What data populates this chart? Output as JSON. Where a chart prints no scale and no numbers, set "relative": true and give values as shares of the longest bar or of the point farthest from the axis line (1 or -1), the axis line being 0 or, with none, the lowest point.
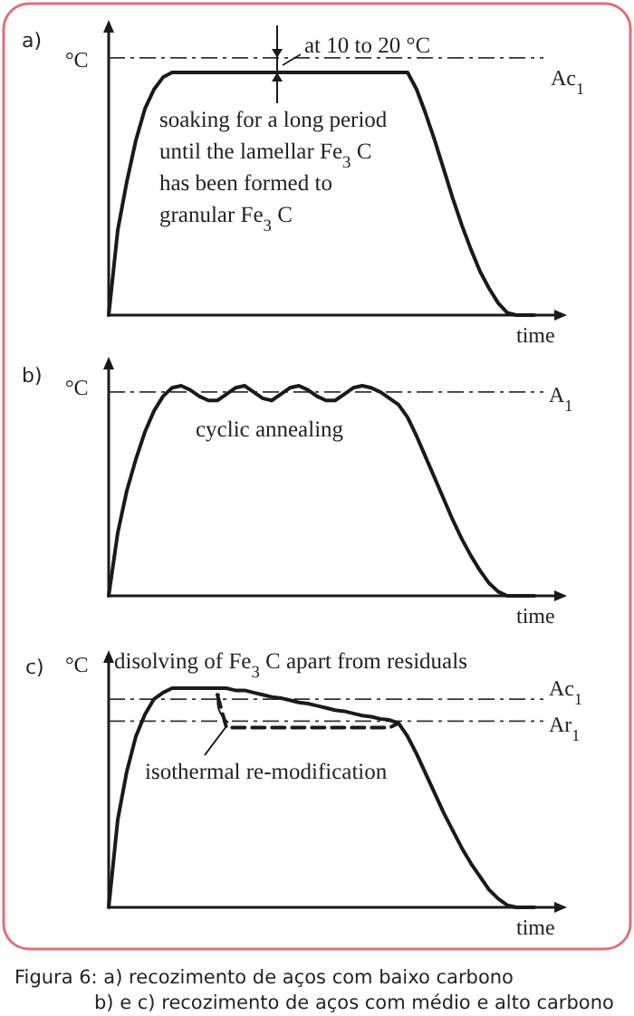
{
  "chart_data": [
    {
      "type": "line",
      "title": "a)",
      "ylabel": "°C",
      "xlabel": "time",
      "relative": true,
      "marker": "none",
      "categories": [
        null,
        null,
        null,
        null,
        null,
        null,
        null,
        null,
        null,
        null,
        null,
        null,
        null,
        null,
        null,
        null,
        null,
        null,
        null,
        null,
        null,
        null,
        null,
        null,
        null,
        null,
        null,
        null,
        null,
        null,
        null,
        null,
        null,
        null,
        null,
        null,
        null,
        null,
        null,
        null,
        null,
        null,
        null,
        null,
        null,
        null,
        null,
        null
      ],
      "series": [
        {
          "color": "#1a1a1a",
          "line_style": "solid",
          "values": [
            0,
            0.35,
            0.55,
            0.72,
            0.85,
            0.93,
            0.98,
            1,
            1,
            1,
            1,
            1,
            1,
            1,
            1,
            1,
            1,
            1,
            1,
            1,
            1,
            1,
            1,
            1,
            1,
            1,
            1,
            1,
            1,
            1,
            1,
            1,
            1,
            1,
            0.93,
            0.83,
            0.72,
            0.6,
            0.48,
            0.37,
            0.27,
            0.18,
            0.11,
            0.05,
            0.01,
            0,
            0,
            0
          ]
        }
      ],
      "ref_lines": [
        {
          "axis": "y",
          "value": 1.06,
          "label": "Ac$_{1}$"
        }
      ],
      "annotations": [
        "at 10  to 20 °C",
        "soaking for a long period until the lamellar Fe$_{3}$C has been formed to granular Fe$_{3}$C"
      ]
    },
    {
      "type": "line",
      "title": "b)",
      "ylabel": "°C",
      "xlabel": "time",
      "relative": true,
      "marker": "none",
      "categories": [
        null,
        null,
        null,
        null,
        null,
        null,
        null,
        null,
        null,
        null,
        null,
        null,
        null,
        null,
        null,
        null,
        null,
        null,
        null,
        null,
        null,
        null,
        null,
        null,
        null,
        null,
        null,
        null,
        null,
        null,
        null,
        null,
        null,
        null,
        null,
        null,
        null,
        null,
        null,
        null,
        null,
        null,
        null,
        null,
        null,
        null,
        null,
        null
      ],
      "series": [
        {
          "color": "#1a1a1a",
          "line_style": "solid",
          "values": [
            0,
            0.3,
            0.5,
            0.65,
            0.78,
            0.88,
            0.95,
            0.99,
            1.0,
            0.98,
            0.95,
            0.93,
            0.93,
            0.96,
            0.99,
            1.0,
            0.97,
            0.94,
            0.93,
            0.96,
            0.99,
            1.0,
            0.98,
            0.95,
            0.93,
            0.93,
            0.96,
            0.99,
            1.0,
            0.99,
            0.97,
            0.94,
            0.91,
            0.85,
            0.76,
            0.66,
            0.56,
            0.46,
            0.36,
            0.27,
            0.19,
            0.12,
            0.06,
            0.02,
            0,
            0,
            0,
            0
          ]
        }
      ],
      "ref_lines": [
        {
          "axis": "y",
          "value": 0.97,
          "label": "A$_{1}$"
        }
      ],
      "annotations": [
        "cyclic annealing"
      ]
    },
    {
      "type": "line",
      "title": "c)",
      "ylabel": "°C",
      "xlabel": "time",
      "relative": true,
      "marker": "none",
      "categories": [
        null,
        null,
        null,
        null,
        null,
        null,
        null,
        null,
        null,
        null,
        null,
        null,
        null,
        null,
        null,
        null,
        null,
        null,
        null,
        null,
        null,
        null,
        null,
        null,
        null,
        null,
        null,
        null,
        null,
        null,
        null,
        null,
        null,
        null,
        null,
        null,
        null,
        null,
        null,
        null,
        null,
        null,
        null,
        null,
        null,
        null,
        null,
        null
      ],
      "series": [
        {
          "color": "#1a1a1a",
          "line_style": "solid",
          "values": [
            0,
            0.4,
            0.62,
            0.78,
            0.88,
            0.95,
            0.98,
            1,
            1,
            1,
            1,
            1,
            1,
            1,
            0.99,
            0.99,
            0.98,
            0.97,
            0.96,
            0.955,
            0.945,
            0.935,
            0.93,
            0.92,
            0.91,
            0.9,
            0.895,
            0.885,
            0.875,
            0.87,
            0.86,
            0.855,
            0.84,
            0.78,
            0.7,
            0.61,
            0.52,
            0.43,
            0.35,
            0.27,
            0.2,
            0.14,
            0.08,
            0.04,
            0.01,
            0,
            0,
            0
          ]
        },
        {
          "color": "#1a1a1a",
          "line_style": "dashed",
          "values": [
            null,
            null,
            null,
            null,
            null,
            null,
            null,
            null,
            null,
            null,
            null,
            null,
            0.97,
            0.82,
            0.82,
            0.82,
            0.82,
            0.82,
            0.82,
            0.82,
            0.82,
            0.82,
            0.82,
            0.82,
            0.82,
            0.82,
            0.82,
            0.82,
            0.82,
            0.82,
            0.82,
            0.82,
            0.84,
            null,
            null,
            null,
            null,
            null,
            null,
            null,
            null,
            null,
            null,
            null,
            null,
            null,
            null,
            null
          ]
        }
      ],
      "ref_lines": [
        {
          "axis": "y",
          "value": 0.95,
          "label": "Ac$_{1}$"
        },
        {
          "axis": "y",
          "value": 0.85,
          "label": "Ar$_{1}$"
        }
      ],
      "annotations": [
        "disolving of Fe$_{3}$ C apart from residuals",
        "isothermal re-modification",
        "Figura 6: a) recozimento de aços com baixo carbono",
        "b) e c) recozimento de aços com médio e alto carbono"
      ]
    }
  ]
}
